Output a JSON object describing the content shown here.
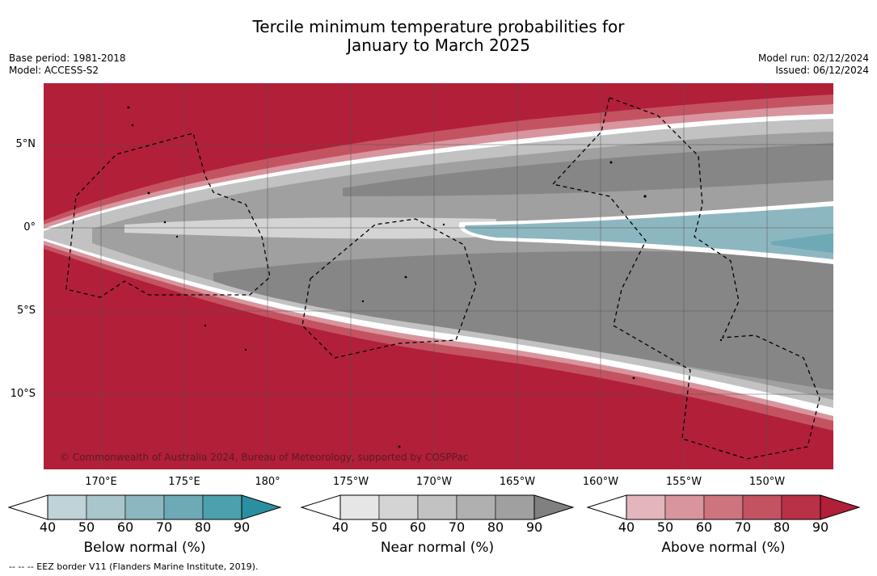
{
  "title": {
    "line1": "Tercile minimum temperature probabilities for",
    "line2": "January to March 2025"
  },
  "meta": {
    "base_period": "Base period: 1981-2018",
    "model": "Model: ACCESS-S2",
    "model_run": "Model run: 02/12/2024",
    "issued": "Issued: 06/12/2024"
  },
  "map": {
    "attribution": "© Commonwealth of Australia 2024, Bureau of Meteorology, supported by COSPPac",
    "lat_labels": [
      "5°N",
      "0°",
      "5°S",
      "10°S"
    ],
    "lon_labels": [
      "170°E",
      "175°E",
      "180°",
      "175°W",
      "170°W",
      "165°W",
      "160°W",
      "155°W",
      "150°W"
    ]
  },
  "colorbars": {
    "below": {
      "label": "Below normal (%)",
      "ticks": [
        "40",
        "50",
        "60",
        "70",
        "80",
        "90"
      ],
      "colors": [
        "#bfd3d8",
        "#a8c6cc",
        "#8db7c0",
        "#6eaab5",
        "#4da0ad",
        "#2a8fa0"
      ]
    },
    "near": {
      "label": "Near normal (%)",
      "ticks": [
        "40",
        "50",
        "60",
        "70",
        "80",
        "90"
      ],
      "colors": [
        "#e6e6e6",
        "#d4d4d4",
        "#c2c2c2",
        "#b0b0b0",
        "#a0a0a0",
        "#808080"
      ]
    },
    "above": {
      "label": "Above normal (%)",
      "ticks": [
        "40",
        "50",
        "60",
        "70",
        "80",
        "90"
      ],
      "colors": [
        "#e2b6bc",
        "#d8959d",
        "#cd747f",
        "#c45362",
        "#b93147",
        "#b21f38"
      ]
    }
  },
  "footnote": "-- -- -- EEZ border V11 (Flanders Marine Institute, 2019)."
}
